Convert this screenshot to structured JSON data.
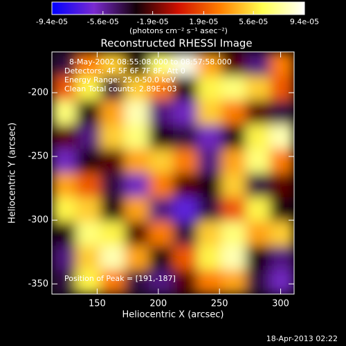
{
  "chart_data": {
    "type": "heatmap",
    "title": "Reconstructed RHESSI Image",
    "xlabel": "Heliocentric X (arcsec)",
    "ylabel": "Heliocentric Y (arcsec)",
    "xlim": [
      113,
      311
    ],
    "ylim": [
      -358,
      -168
    ],
    "xticks": [
      150,
      200,
      250,
      300
    ],
    "yticks": [
      -350,
      -300,
      -250,
      -200
    ],
    "annotations": [
      "8-May-2002 08:55:08.000 to 08:57:58.000",
      "Detectors: 4F 5F 6F 7F 8F, Att 0",
      "Energy Range: 25.0-50.0 keV",
      "Clean     Total counts: 2.89E+03",
      "Position of Peak = [191,-187]"
    ],
    "colorbar": {
      "label": "(photons cm⁻² s⁻¹ asec⁻²)",
      "lim": [
        -9.4e-05,
        9.4e-05
      ],
      "ticks": [
        {
          "value": -9.4e-05,
          "label": "-9.4e-05"
        },
        {
          "value": -5.6e-05,
          "label": "-5.6e-05"
        },
        {
          "value": -1.9e-05,
          "label": "-1.9e-05"
        },
        {
          "value": 1.9e-05,
          "label": "1.9e-05"
        },
        {
          "value": 5.6e-05,
          "label": "5.6e-05"
        },
        {
          "value": 9.4e-05,
          "label": "9.4e-05"
        }
      ],
      "colors": [
        "#0000ff",
        "#7a2ad0",
        "#140008",
        "#d01000",
        "#ff8000",
        "#ffff50",
        "#ffffff"
      ]
    },
    "values": [
      [
        -4e-05,
        3e-05,
        5e-05,
        -3e-05,
        7e-05,
        9e-05,
        4e-05,
        -2e-05,
        -5e-05,
        3e-05
      ],
      [
        2e-05,
        6e-05,
        -4e-05,
        5e-05,
        3e-05,
        -3e-05,
        6e-05,
        7e-05,
        5e-05,
        2e-05
      ],
      [
        7e-05,
        -3e-05,
        4e-05,
        8e-05,
        -5e-05,
        -6e-05,
        5e-05,
        3e-05,
        -2e-05,
        -4e-05
      ],
      [
        -2e-05,
        -5e-05,
        5e-05,
        7e-05,
        -3e-05,
        -4e-05,
        -6e-05,
        -3e-05,
        6e-05,
        8e-05
      ],
      [
        -6e-05,
        -3e-05,
        -2e-05,
        4e-05,
        5e-05,
        3e-05,
        -5e-05,
        4e-05,
        7e-05,
        3e-05
      ],
      [
        4e-05,
        2e-05,
        -4e-05,
        -6e-05,
        3e-05,
        -2e-05,
        -3e-05,
        5e-05,
        -4e-05,
        -2e-05
      ],
      [
        6e-05,
        5e-05,
        -3e-05,
        4e-05,
        -5e-05,
        -7e-05,
        -4e-05,
        2e-05,
        6e-05,
        -3e-05
      ],
      [
        -3e-05,
        7e-05,
        6e-05,
        -2e-05,
        3e-05,
        -4e-05,
        5e-05,
        7e-05,
        4e-05,
        5e-05
      ],
      [
        -5e-05,
        5e-05,
        8e-05,
        4e-05,
        -3e-05,
        2e-05,
        6e-05,
        8e-05,
        -3e-05,
        -5e-05
      ],
      [
        -4e-05,
        6e-05,
        3e-05,
        -4e-05,
        -5e-05,
        -2e-05,
        3e-05,
        4e-05,
        -4e-05,
        -6e-05
      ]
    ]
  },
  "footer": "18-Apr-2013 02:22"
}
